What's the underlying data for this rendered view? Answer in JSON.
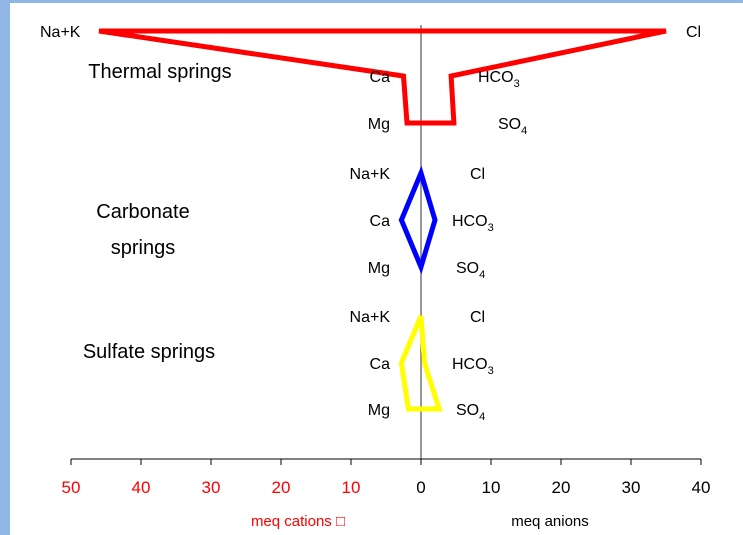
{
  "chart_data": {
    "type": "stiff_diagram",
    "title": "",
    "x_axis": {
      "ticks_left": [
        50,
        40,
        30,
        20,
        10
      ],
      "ticks_right": [
        0,
        10,
        20,
        30,
        40
      ],
      "left_color": "#ff0000",
      "right_color": "#000000",
      "xlim": [
        -50,
        40
      ]
    },
    "xlabel_left": "meq cations □",
    "xlabel_right": "meq anions",
    "rows": [
      "Na+K / Cl",
      "Ca / HCO3",
      "Mg / SO4"
    ],
    "series": [
      {
        "name": "Thermal springs",
        "name_lines": [
          "Thermal springs"
        ],
        "color": "#ff0000",
        "cations": {
          "Na+K": 46.0,
          "Ca": 2.5,
          "Mg": 2.0
        },
        "anions": {
          "Cl": 35.0,
          "HCO3": 4.3,
          "SO4": 4.7
        },
        "labels": {
          "cation": [
            "Na+K",
            "Ca",
            "Mg"
          ],
          "anion": [
            "Cl",
            "HCO",
            "SO"
          ],
          "anion_sub": [
            "",
            "3",
            "4"
          ]
        }
      },
      {
        "name": "Carbonate springs",
        "name_lines": [
          "Carbonate",
          "springs"
        ],
        "color": "#0000ff",
        "cations": {
          "Na+K": 0.0,
          "Ca": 2.8,
          "Mg": 0.0
        },
        "anions": {
          "Cl": 0.0,
          "HCO3": 2.0,
          "SO4": 0.0
        },
        "labels": {
          "cation": [
            "Na+K",
            "Ca",
            "Mg"
          ],
          "anion": [
            "Cl",
            "HCO",
            "SO"
          ],
          "anion_sub": [
            "",
            "3",
            "4"
          ]
        }
      },
      {
        "name": "Sulfate springs",
        "name_lines": [
          "Sulfate springs"
        ],
        "color": "#ffff00",
        "cations": {
          "Na+K": 0.0,
          "Ca": 2.8,
          "Mg": 1.8
        },
        "anions": {
          "Cl": 0.0,
          "HCO3": 0.5,
          "SO4": 2.6
        },
        "labels": {
          "cation": [
            "Na+K",
            "Ca",
            "Mg"
          ],
          "anion": [
            "Cl",
            "HCO",
            "SO"
          ],
          "anion_sub": [
            "",
            "3",
            "4"
          ]
        }
      }
    ]
  }
}
